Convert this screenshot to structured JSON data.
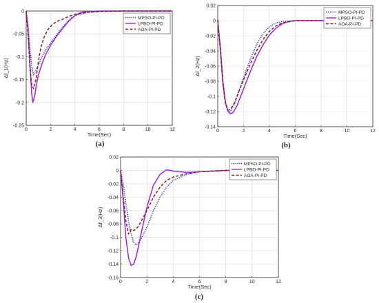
{
  "chart_data": [
    {
      "type": "line",
      "panel_label": "(a)",
      "xlabel": "Time(Sec)",
      "ylabel": "Δf_1(Hz)",
      "xlim": [
        0,
        12
      ],
      "ylim": [
        -0.25,
        0
      ],
      "xticks": [
        0,
        2,
        4,
        6,
        8,
        10,
        12
      ],
      "yticks": [
        0,
        -0.05,
        -0.1,
        -0.15,
        -0.2,
        -0.25
      ],
      "grid": true,
      "legend_position": "top-right",
      "series": [
        {
          "name": "MPSO-PI-PD",
          "color": "#1f1fbf",
          "style": "dotted",
          "x": [
            0,
            0.15,
            0.3,
            0.45,
            0.6,
            0.8,
            1.0,
            1.3,
            1.6,
            2.0,
            2.5,
            3.0,
            3.5,
            4.0,
            5.0,
            6.0,
            8.0,
            10.0,
            12.0
          ],
          "y": [
            0,
            -0.03,
            -0.08,
            -0.12,
            -0.14,
            -0.13,
            -0.118,
            -0.1,
            -0.085,
            -0.07,
            -0.052,
            -0.035,
            -0.02,
            -0.01,
            -0.003,
            -0.001,
            0,
            0,
            0
          ]
        },
        {
          "name": "LPBO-PI-PD",
          "color": "#a020f0",
          "style": "solid",
          "x": [
            0,
            0.15,
            0.3,
            0.45,
            0.55,
            0.7,
            0.85,
            1.0,
            1.3,
            1.6,
            2.0,
            2.5,
            3.0,
            3.5,
            4.0,
            4.5,
            5.0,
            6.0,
            8.0,
            10.0,
            12.0
          ],
          "y": [
            0,
            -0.04,
            -0.11,
            -0.18,
            -0.2,
            -0.185,
            -0.16,
            -0.14,
            -0.115,
            -0.095,
            -0.075,
            -0.055,
            -0.038,
            -0.022,
            -0.01,
            -0.003,
            -0.001,
            0,
            0,
            0,
            0
          ]
        },
        {
          "name": "AOA-PI-PD",
          "color": "#8b1a1a",
          "style": "dashed",
          "x": [
            0,
            0.15,
            0.3,
            0.45,
            0.6,
            0.8,
            1.0,
            1.2,
            1.5,
            1.8,
            2.2,
            2.6,
            3.0,
            3.5,
            4.0,
            5.0,
            6.0,
            8.0,
            10.0,
            12.0
          ],
          "y": [
            0,
            -0.05,
            -0.12,
            -0.16,
            -0.17,
            -0.15,
            -0.11,
            -0.08,
            -0.055,
            -0.04,
            -0.028,
            -0.022,
            -0.018,
            -0.012,
            -0.007,
            -0.003,
            -0.001,
            0,
            0,
            0
          ]
        }
      ]
    },
    {
      "type": "line",
      "panel_label": "(b)",
      "xlabel": "Time(Sec)",
      "ylabel": "Δf_2(Hz)",
      "xlim": [
        0,
        12
      ],
      "ylim": [
        -0.14,
        0.02
      ],
      "xticks": [
        0,
        2,
        4,
        6,
        8,
        10,
        12
      ],
      "yticks": [
        0.02,
        0,
        -0.02,
        -0.04,
        -0.06,
        -0.08,
        -0.1,
        -0.12,
        -0.14
      ],
      "grid": true,
      "legend_position": "top-right",
      "series": [
        {
          "name": "MPSO-PI-PD",
          "color": "#1f1fbf",
          "style": "dotted",
          "x": [
            0,
            0.2,
            0.4,
            0.6,
            0.8,
            1.0,
            1.3,
            1.6,
            2.0,
            2.5,
            3.0,
            3.5,
            4.0,
            4.5,
            5.0,
            6.0,
            8.0,
            10.0,
            12.0
          ],
          "y": [
            0,
            -0.04,
            -0.085,
            -0.11,
            -0.12,
            -0.119,
            -0.11,
            -0.095,
            -0.075,
            -0.052,
            -0.032,
            -0.017,
            -0.008,
            -0.003,
            -0.001,
            0,
            0,
            0,
            0
          ]
        },
        {
          "name": "LPBO-PI-PD",
          "color": "#a020f0",
          "style": "solid",
          "x": [
            0,
            0.2,
            0.4,
            0.6,
            0.8,
            1.0,
            1.2,
            1.5,
            2.0,
            2.5,
            3.0,
            3.5,
            4.0,
            4.5,
            5.0,
            5.5,
            6.0,
            8.0,
            10.0,
            12.0
          ],
          "y": [
            0,
            -0.035,
            -0.08,
            -0.108,
            -0.12,
            -0.123,
            -0.121,
            -0.112,
            -0.09,
            -0.068,
            -0.048,
            -0.032,
            -0.019,
            -0.01,
            -0.004,
            -0.001,
            0,
            0,
            0,
            0
          ]
        },
        {
          "name": "AOA-PI-PD",
          "color": "#8b1a1a",
          "style": "dashed",
          "x": [
            0,
            0.2,
            0.4,
            0.6,
            0.8,
            1.0,
            1.3,
            1.6,
            2.0,
            2.5,
            3.0,
            3.5,
            4.0,
            4.5,
            5.0,
            6.0,
            8.0,
            10.0,
            12.0
          ],
          "y": [
            0,
            -0.038,
            -0.083,
            -0.11,
            -0.118,
            -0.117,
            -0.108,
            -0.095,
            -0.078,
            -0.058,
            -0.04,
            -0.025,
            -0.014,
            -0.007,
            -0.003,
            0,
            0,
            0,
            0
          ]
        }
      ]
    },
    {
      "type": "line",
      "panel_label": "(c)",
      "xlabel": "Time(Sec)",
      "ylabel": "Δf_3(Hz)",
      "xlim": [
        0,
        12
      ],
      "ylim": [
        -0.16,
        0.02
      ],
      "xticks": [
        0,
        2,
        4,
        6,
        8,
        10,
        12
      ],
      "yticks": [
        0.02,
        0,
        -0.02,
        -0.04,
        -0.06,
        -0.08,
        -0.1,
        -0.12,
        -0.14,
        -0.16
      ],
      "grid": true,
      "legend_position": "top-right",
      "series": [
        {
          "name": "MPSO-PI-PD",
          "color": "#1f1fbf",
          "style": "dotted",
          "x": [
            0,
            0.2,
            0.4,
            0.6,
            0.8,
            1.0,
            1.2,
            1.5,
            2.0,
            2.5,
            3.0,
            3.5,
            4.0,
            5.0,
            6.0,
            7.0,
            8.0,
            10.0,
            12.0
          ],
          "y": [
            0,
            -0.02,
            -0.05,
            -0.075,
            -0.095,
            -0.108,
            -0.111,
            -0.105,
            -0.085,
            -0.06,
            -0.04,
            -0.025,
            -0.015,
            -0.006,
            -0.002,
            -0.001,
            0,
            0,
            0
          ]
        },
        {
          "name": "LPBO-PI-PD",
          "color": "#a020f0",
          "style": "solid",
          "x": [
            0,
            0.2,
            0.4,
            0.6,
            0.8,
            1.0,
            1.2,
            1.5,
            2.0,
            2.5,
            3.0,
            3.5,
            4.0,
            4.5,
            5.0,
            6.0,
            8.0,
            10.0,
            12.0
          ],
          "y": [
            0,
            -0.045,
            -0.1,
            -0.13,
            -0.142,
            -0.14,
            -0.128,
            -0.1,
            -0.055,
            -0.022,
            -0.006,
            0.001,
            -0.001,
            -0.002,
            -0.003,
            -0.002,
            0,
            0,
            0
          ]
        },
        {
          "name": "AOA-PI-PD",
          "color": "#8b1a1a",
          "style": "dashed",
          "x": [
            0,
            0.2,
            0.4,
            0.6,
            0.8,
            1.0,
            1.3,
            1.6,
            2.0,
            2.5,
            3.0,
            3.5,
            4.0,
            5.0,
            6.0,
            8.0,
            10.0,
            12.0
          ],
          "y": [
            0,
            -0.04,
            -0.075,
            -0.095,
            -0.088,
            -0.09,
            -0.085,
            -0.075,
            -0.06,
            -0.04,
            -0.025,
            -0.015,
            -0.01,
            -0.005,
            -0.002,
            0,
            0,
            0
          ]
        }
      ]
    }
  ]
}
